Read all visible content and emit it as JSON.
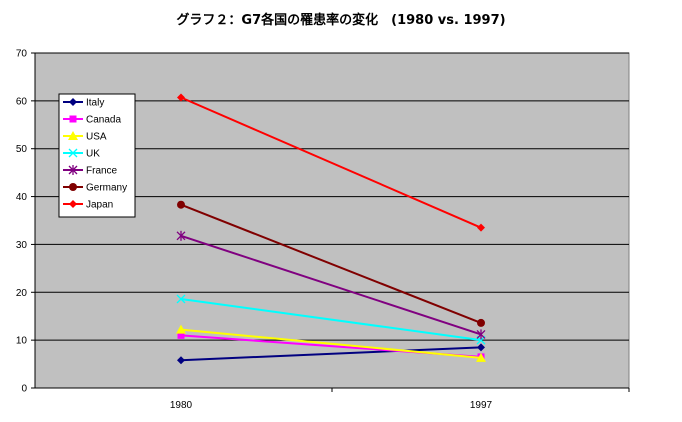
{
  "chart_data": {
    "type": "line",
    "title": "グラフ２：G7各国の罹患率の変化　(1980 vs. 1997)",
    "xlabel": "",
    "ylabel": "",
    "categories": [
      "1980",
      "1997"
    ],
    "ylim": [
      0,
      70
    ],
    "yticks": [
      0,
      10,
      20,
      30,
      40,
      50,
      60,
      70
    ],
    "grid": true,
    "legend_position": "top-left",
    "plot_background": "#c0c0c0",
    "series": [
      {
        "name": "Italy",
        "values": [
          5.8,
          8.5
        ],
        "color": "#000080",
        "marker": "diamond"
      },
      {
        "name": "Canada",
        "values": [
          11.0,
          6.5
        ],
        "color": "#ff00ff",
        "marker": "square"
      },
      {
        "name": "USA",
        "values": [
          12.2,
          6.3
        ],
        "color": "#ffff00",
        "marker": "triangle"
      },
      {
        "name": "UK",
        "values": [
          18.6,
          10.0
        ],
        "color": "#00ffff",
        "marker": "x"
      },
      {
        "name": "France",
        "values": [
          31.8,
          11.2
        ],
        "color": "#800080",
        "marker": "star"
      },
      {
        "name": "Germany",
        "values": [
          38.3,
          13.6
        ],
        "color": "#800000",
        "marker": "circle"
      },
      {
        "name": "Japan",
        "values": [
          60.7,
          33.5
        ],
        "color": "#ff0000",
        "marker": "diamond"
      }
    ]
  }
}
